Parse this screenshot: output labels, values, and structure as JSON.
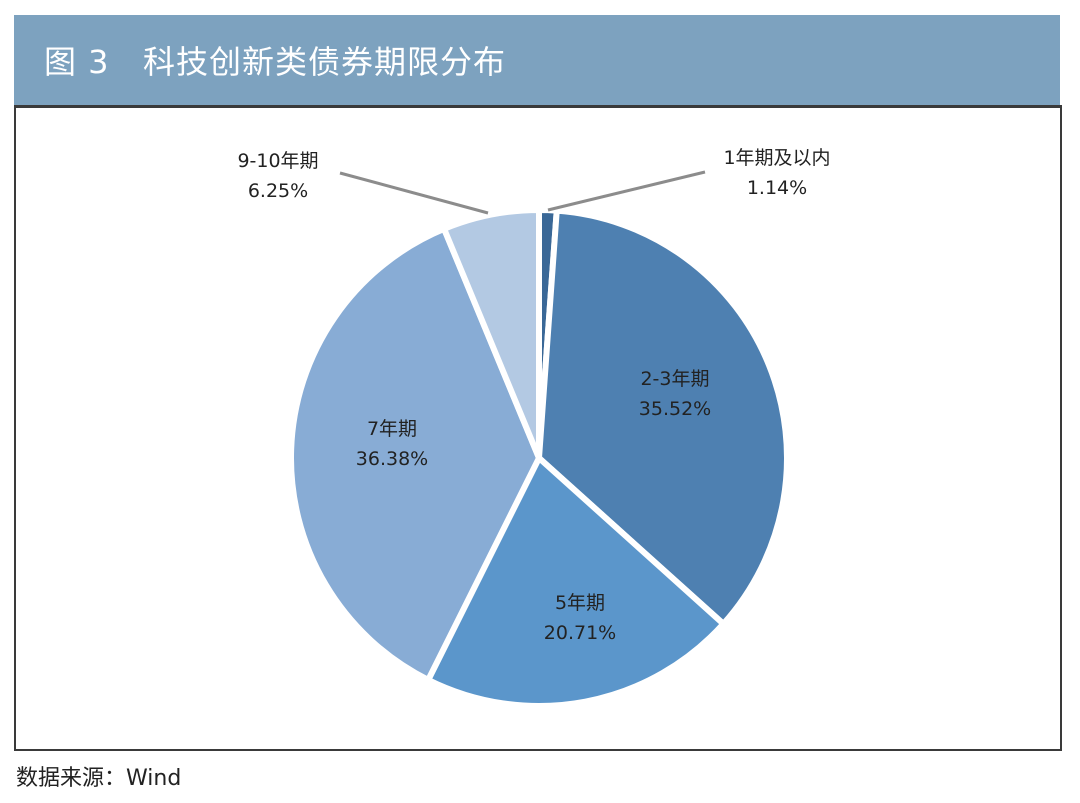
{
  "title": "图 3   科技创新类债券期限分布",
  "source": "数据来源：Wind",
  "colors": {
    "title_bar": "#7da2bf",
    "separator": "#ffffff",
    "leader_line": "#8c8c8c"
  },
  "chart_data": {
    "type": "pie",
    "title": "图 3   科技创新类债券期限分布",
    "start": "12 o'clock",
    "direction": "clockwise",
    "slices": [
      {
        "name": "1年期及以内",
        "value": 1.14,
        "label": "1.14%",
        "color": "#3a6897",
        "label_position": "outside"
      },
      {
        "name": "2-3年期",
        "value": 35.52,
        "label": "35.52%",
        "color": "#4e80b1",
        "label_position": "inside"
      },
      {
        "name": "5年期",
        "value": 20.71,
        "label": "20.71%",
        "color": "#5b96cb",
        "label_position": "inside"
      },
      {
        "name": "7年期",
        "value": 36.38,
        "label": "36.38%",
        "color": "#88acd5",
        "label_position": "inside"
      },
      {
        "name": "9-10年期",
        "value": 6.25,
        "label": "6.25%",
        "color": "#b3c9e3",
        "label_position": "outside"
      }
    ]
  }
}
